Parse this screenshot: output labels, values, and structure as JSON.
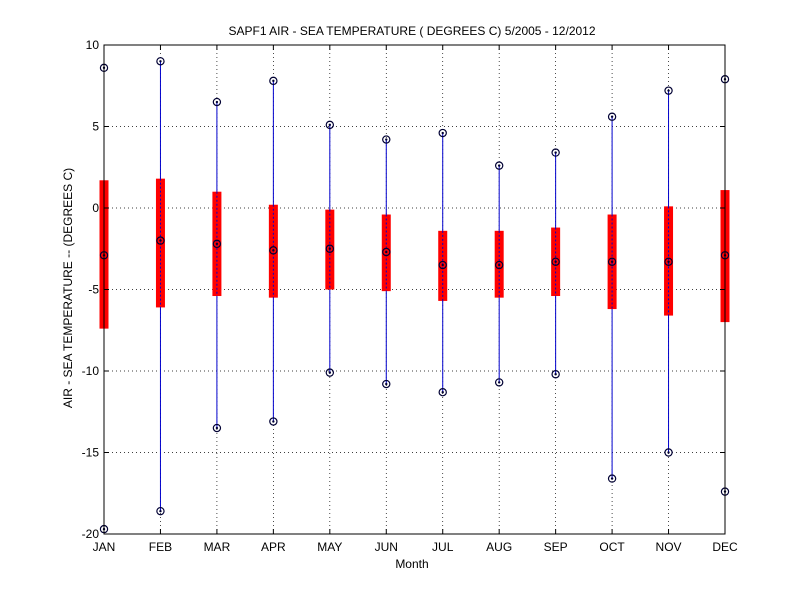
{
  "chart_data": {
    "type": "box",
    "title": "SAPF1  AIR - SEA TEMPERATURE ( DEGREES C) 5/2005 - 12/2012",
    "xlabel": "Month",
    "ylabel": "AIR - SEA TEMPERATURE -- (DEGREES C)",
    "ylim": [
      -20,
      10
    ],
    "yticks": [
      -20,
      -15,
      -10,
      -5,
      0,
      5,
      10
    ],
    "grid": true,
    "categories": [
      "JAN",
      "FEB",
      "MAR",
      "APR",
      "MAY",
      "JUN",
      "JUL",
      "AUG",
      "SEP",
      "OCT",
      "NOV",
      "DEC"
    ],
    "series": [
      {
        "max": [
          8.6,
          9.0,
          6.5,
          7.8,
          5.1,
          4.2,
          4.6,
          2.6,
          3.4,
          5.6,
          7.2,
          7.9
        ],
        "q3": [
          1.7,
          1.8,
          1.0,
          0.2,
          -0.1,
          -0.4,
          -1.4,
          -1.4,
          -1.2,
          -0.4,
          0.1,
          1.1
        ],
        "median": [
          -2.9,
          -2.0,
          -2.2,
          -2.6,
          -2.5,
          -2.7,
          -3.5,
          -3.5,
          -3.3,
          -3.3,
          -3.3,
          -2.9
        ],
        "q1": [
          -7.4,
          -6.1,
          -5.4,
          -5.5,
          -5.0,
          -5.1,
          -5.7,
          -5.5,
          -5.4,
          -6.2,
          -6.6,
          -7.0
        ],
        "min": [
          -19.7,
          -18.6,
          -13.5,
          -13.1,
          -10.1,
          -10.8,
          -11.3,
          -10.7,
          -10.2,
          -16.6,
          -15.0,
          -17.4
        ]
      }
    ],
    "colors": {
      "whisker": "#0000cc",
      "box": "#ff0000",
      "marker": "#000033"
    }
  }
}
